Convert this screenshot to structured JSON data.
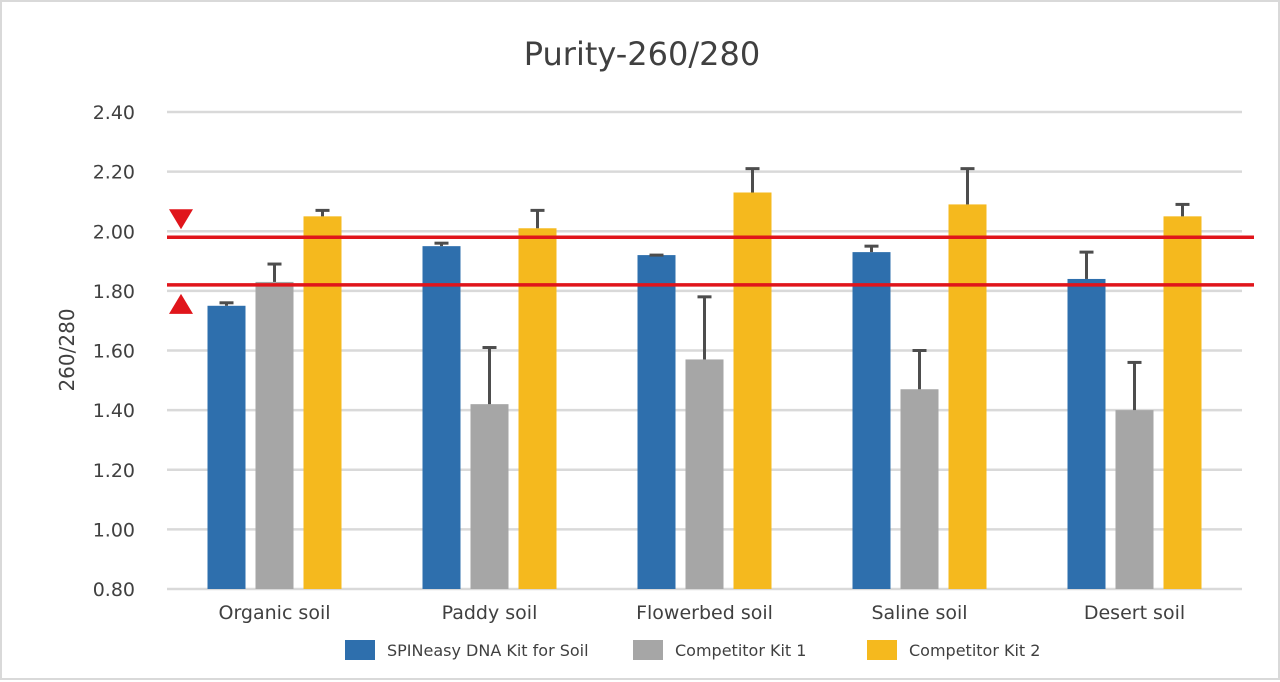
{
  "chart_data": {
    "type": "bar",
    "title": "Purity-260/280",
    "xlabel": "",
    "ylabel": "260/280",
    "ylim": [
      0.8,
      2.4
    ],
    "yticks": [
      "0.80",
      "1.00",
      "1.20",
      "1.40",
      "1.60",
      "1.80",
      "2.00",
      "2.20",
      "2.40"
    ],
    "grid": true,
    "legend_position": "bottom",
    "categories": [
      "Organic soil",
      "Paddy soil",
      "Flowerbed soil",
      "Saline soil",
      "Desert soil"
    ],
    "series": [
      {
        "name": "SPINeasy DNA Kit for Soil",
        "color": "#2e6fad",
        "values": [
          1.75,
          1.95,
          1.92,
          1.93,
          1.84
        ],
        "error": [
          0.01,
          0.01,
          0.0,
          0.02,
          0.09
        ]
      },
      {
        "name": "Competitor Kit 1",
        "color": "#a6a6a6",
        "values": [
          1.83,
          1.42,
          1.57,
          1.47,
          1.4
        ],
        "error": [
          0.06,
          0.19,
          0.21,
          0.13,
          0.16
        ]
      },
      {
        "name": "Competitor Kit 2",
        "color": "#f5b91e",
        "values": [
          2.05,
          2.01,
          2.13,
          2.09,
          2.05
        ],
        "error": [
          0.02,
          0.06,
          0.08,
          0.12,
          0.04
        ]
      }
    ],
    "reference_lines": [
      {
        "value": 1.98,
        "color": "#e0151b",
        "marker": "down-triangle"
      },
      {
        "value": 1.82,
        "color": "#e0151b",
        "marker": "up-triangle"
      }
    ],
    "error_bar_color": "#4d4d4d",
    "grid_color": "#d9d9d9"
  }
}
